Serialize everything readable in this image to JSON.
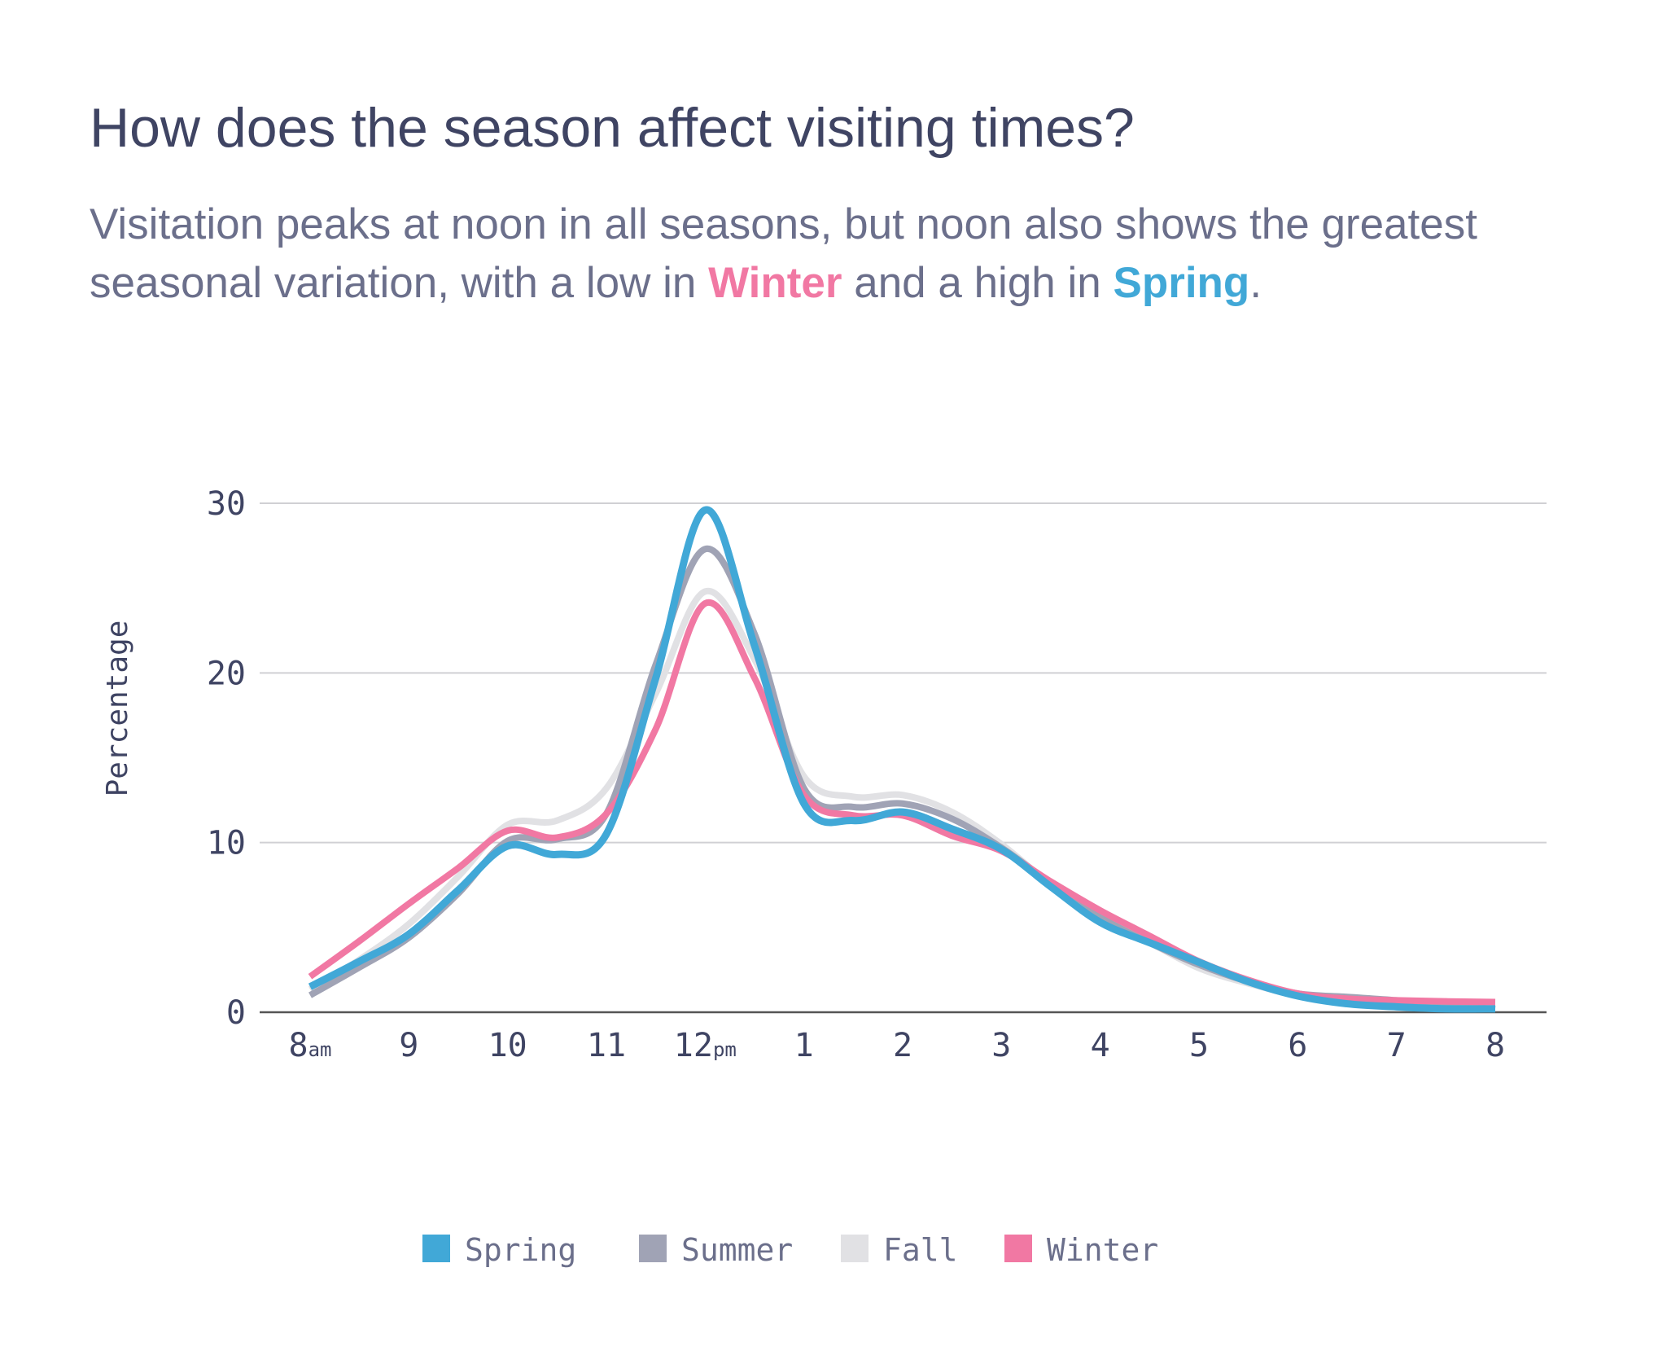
{
  "title": "How does the season affect visiting times?",
  "subtitle": {
    "line1": "Visitation peaks at noon in all seasons, but noon also shows the greatest",
    "line2_pre": "seasonal variation, with a low in ",
    "winter_word": "Winter",
    "line2_mid": " and a high in ",
    "spring_word": "Spring",
    "line2_post": "."
  },
  "chart_data": {
    "type": "line",
    "title": "How does the season affect visiting times?",
    "xlabel": "",
    "ylabel": "Percentage",
    "ylim": [
      0,
      30
    ],
    "yticks": [
      0,
      10,
      20,
      30
    ],
    "xlim": [
      8,
      20
    ],
    "xtick_labels": [
      {
        "x": 8,
        "label": "8",
        "suffix": "am"
      },
      {
        "x": 9,
        "label": "9"
      },
      {
        "x": 10,
        "label": "10"
      },
      {
        "x": 11,
        "label": "11"
      },
      {
        "x": 12,
        "label": "12",
        "suffix": "pm"
      },
      {
        "x": 13,
        "label": "1"
      },
      {
        "x": 14,
        "label": "2"
      },
      {
        "x": 15,
        "label": "3"
      },
      {
        "x": 16,
        "label": "4"
      },
      {
        "x": 17,
        "label": "5"
      },
      {
        "x": 18,
        "label": "6"
      },
      {
        "x": 19,
        "label": "7"
      },
      {
        "x": 20,
        "label": "8"
      }
    ],
    "grid": "horizontal",
    "legend_position": "bottom",
    "x": [
      8,
      8.5,
      9,
      9.5,
      10,
      10.5,
      11,
      11.5,
      12,
      12.5,
      13,
      13.5,
      14,
      14.5,
      15,
      15.5,
      16,
      16.5,
      17,
      17.5,
      18,
      18.5,
      19,
      19.5,
      20
    ],
    "series": [
      {
        "name": "Fall",
        "color": "#e1e1e4",
        "values": [
          1.35,
          3.1,
          5.2,
          8.0,
          11.05,
          11.3,
          13.2,
          18.8,
          24.8,
          20.8,
          13.9,
          12.7,
          12.8,
          11.8,
          9.9,
          7.5,
          5.5,
          4.1,
          2.6,
          1.7,
          1.0,
          0.8,
          0.64,
          0.4,
          0.2
        ]
      },
      {
        "name": "Summer",
        "color": "#a0a3b5",
        "values": [
          1.0,
          2.65,
          4.4,
          7.0,
          10.1,
          10.2,
          11.7,
          20.5,
          27.3,
          22.3,
          13.2,
          12.1,
          12.3,
          11.4,
          9.7,
          7.6,
          5.6,
          4.1,
          2.8,
          1.8,
          1.1,
          0.9,
          0.7,
          0.4,
          0.2
        ]
      },
      {
        "name": "Winter",
        "color": "#f178a3",
        "values": [
          2.1,
          4.2,
          6.4,
          8.5,
          10.7,
          10.3,
          11.7,
          16.7,
          24.1,
          19.7,
          12.8,
          11.6,
          11.6,
          10.4,
          9.5,
          7.7,
          6.0,
          4.5,
          3.0,
          1.9,
          1.1,
          0.8,
          0.7,
          0.64,
          0.6
        ]
      },
      {
        "name": "Spring",
        "color": "#41a8d7",
        "values": [
          1.5,
          3.0,
          4.6,
          7.2,
          9.8,
          9.3,
          10.5,
          19.7,
          29.6,
          21.6,
          12.3,
          11.3,
          11.8,
          10.8,
          9.6,
          7.4,
          5.3,
          4.1,
          2.95,
          1.8,
          0.96,
          0.5,
          0.32,
          0.2,
          0.2
        ]
      }
    ],
    "legend": [
      {
        "name": "Spring",
        "color": "#41a8d7"
      },
      {
        "name": "Summer",
        "color": "#a0a3b5"
      },
      {
        "name": "Fall",
        "color": "#e1e1e4"
      },
      {
        "name": "Winter",
        "color": "#f178a3"
      }
    ]
  }
}
